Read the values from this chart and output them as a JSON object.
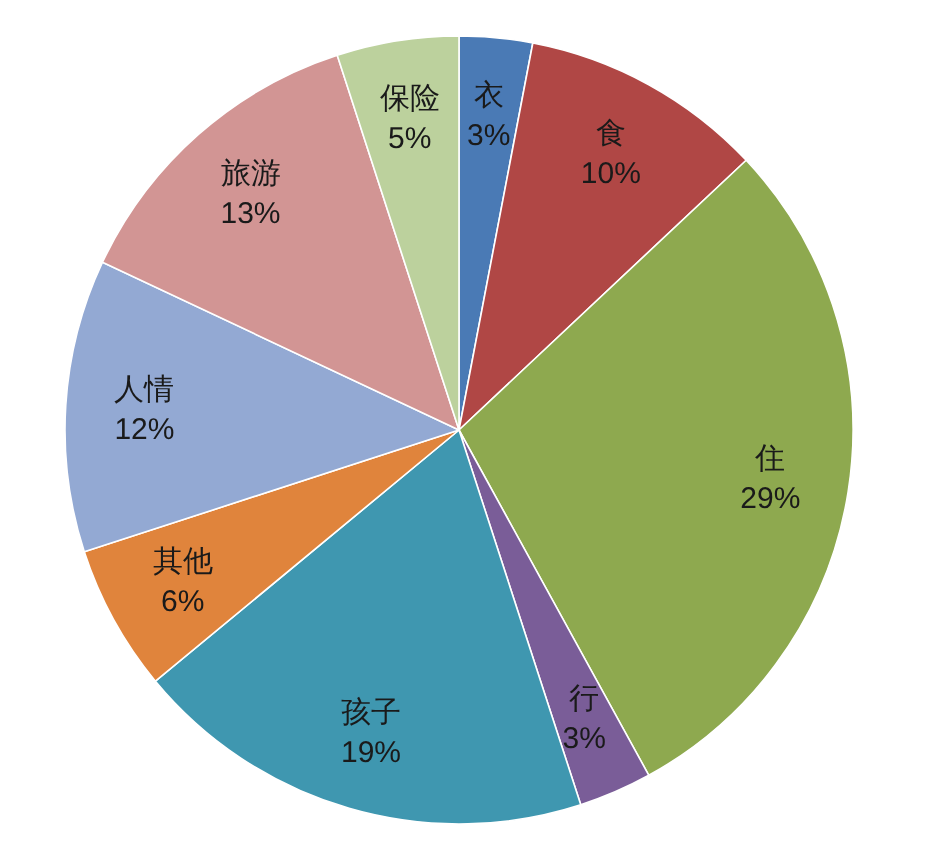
{
  "chart_data": {
    "type": "pie",
    "categories": [
      "衣",
      "食",
      "住",
      "行",
      "孩子",
      "其他",
      "人情",
      "旅游",
      "保险"
    ],
    "values": [
      3,
      10,
      29,
      3,
      19,
      6,
      12,
      13,
      5
    ],
    "value_labels": [
      "3%",
      "10%",
      "29%",
      "3%",
      "19%",
      "6%",
      "12%",
      "13%",
      "5%"
    ],
    "colors": [
      "#4a7ab5",
      "#b04745",
      "#8ea94f",
      "#7a5d98",
      "#3f97b0",
      "#e0843c",
      "#93a9d3",
      "#d29594",
      "#bcd19d"
    ]
  }
}
